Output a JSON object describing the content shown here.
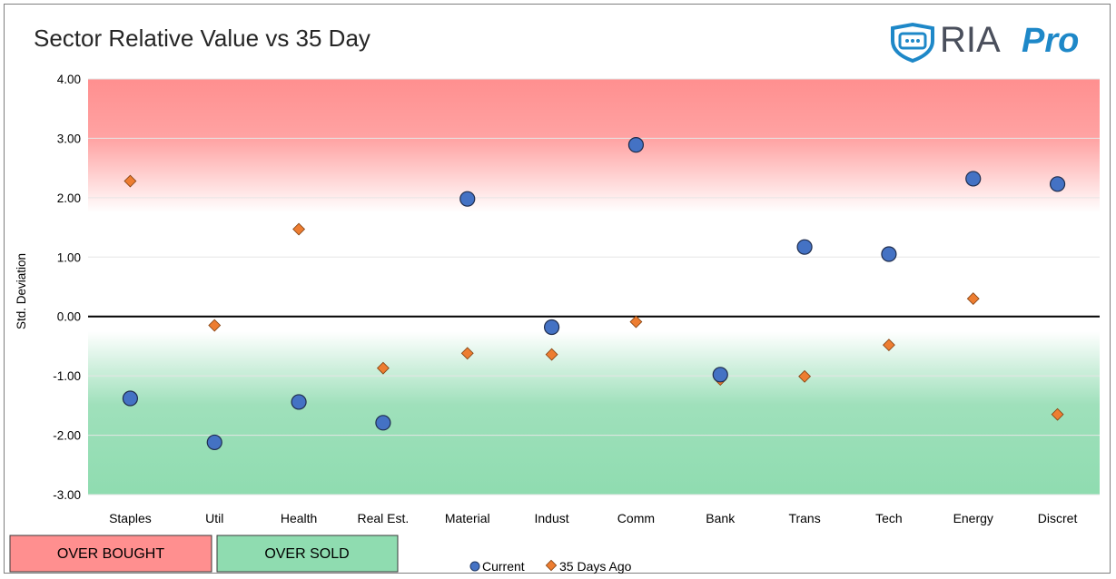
{
  "chart_data": {
    "type": "scatter",
    "title": "Sector Relative Value vs 35 Day",
    "ylabel": "Std. Deviation",
    "ylim": [
      -3,
      4
    ],
    "y_ticks": [
      "4.00",
      "3.00",
      "2.00",
      "1.00",
      "0.00",
      "-1.00",
      "-2.00",
      "-3.00"
    ],
    "grid": true,
    "categories": [
      "Staples",
      "Util",
      "Health",
      "Real Est.",
      "Material",
      "Indust",
      "Comm",
      "Bank",
      "Trans",
      "Tech",
      "Energy",
      "Discret"
    ],
    "series": [
      {
        "name": "Current",
        "marker": "circle",
        "color": "#4472c4",
        "values": [
          -1.38,
          -2.12,
          -1.44,
          -1.79,
          1.98,
          -0.18,
          2.89,
          -0.98,
          1.17,
          1.05,
          2.32,
          2.23
        ]
      },
      {
        "name": "35 Days Ago",
        "marker": "diamond",
        "color": "#ed7d31",
        "values": [
          2.28,
          -0.15,
          1.47,
          -0.87,
          -0.62,
          -0.64,
          -0.09,
          -1.06,
          -1.01,
          -0.48,
          0.3,
          -1.65
        ]
      }
    ],
    "bands": [
      {
        "label": "OVER BOUGHT",
        "color": "#ff8f8f",
        "from": 1.75,
        "to": 4
      },
      {
        "label": "OVER SOLD",
        "color": "#8fdcb0",
        "from": -3,
        "to": -0.25
      }
    ],
    "legend_position": "bottom"
  },
  "logo": {
    "brand": "RIA",
    "product": "Pro",
    "shield_color": "#1e88c8"
  },
  "colors": {
    "overbought": "#ff8f8f",
    "oversold": "#8fdcb0",
    "current": "#4472c4",
    "past": "#ed7d31"
  }
}
